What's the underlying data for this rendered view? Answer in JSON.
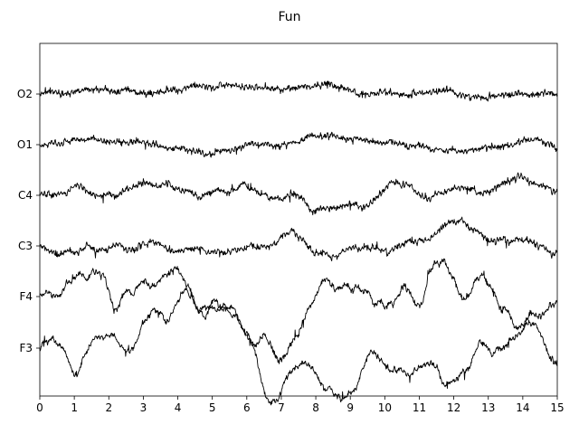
{
  "chart_data": {
    "type": "line",
    "title": "Fun",
    "xlabel": "",
    "ylabel": "",
    "xlim": [
      0,
      15
    ],
    "x_ticks": [
      0,
      1,
      2,
      3,
      4,
      5,
      6,
      7,
      8,
      9,
      10,
      11,
      12,
      13,
      14,
      15
    ],
    "grid": false,
    "channels": [
      {
        "name": "O2",
        "character": "low-amplitude, fast"
      },
      {
        "name": "O1",
        "character": "low-amplitude, fast"
      },
      {
        "name": "C4",
        "character": "medium-amplitude"
      },
      {
        "name": "C3",
        "character": "medium-amplitude"
      },
      {
        "name": "F4",
        "character": "high-amplitude, slow waves"
      },
      {
        "name": "F3",
        "character": "high-amplitude, slow waves"
      }
    ]
  }
}
